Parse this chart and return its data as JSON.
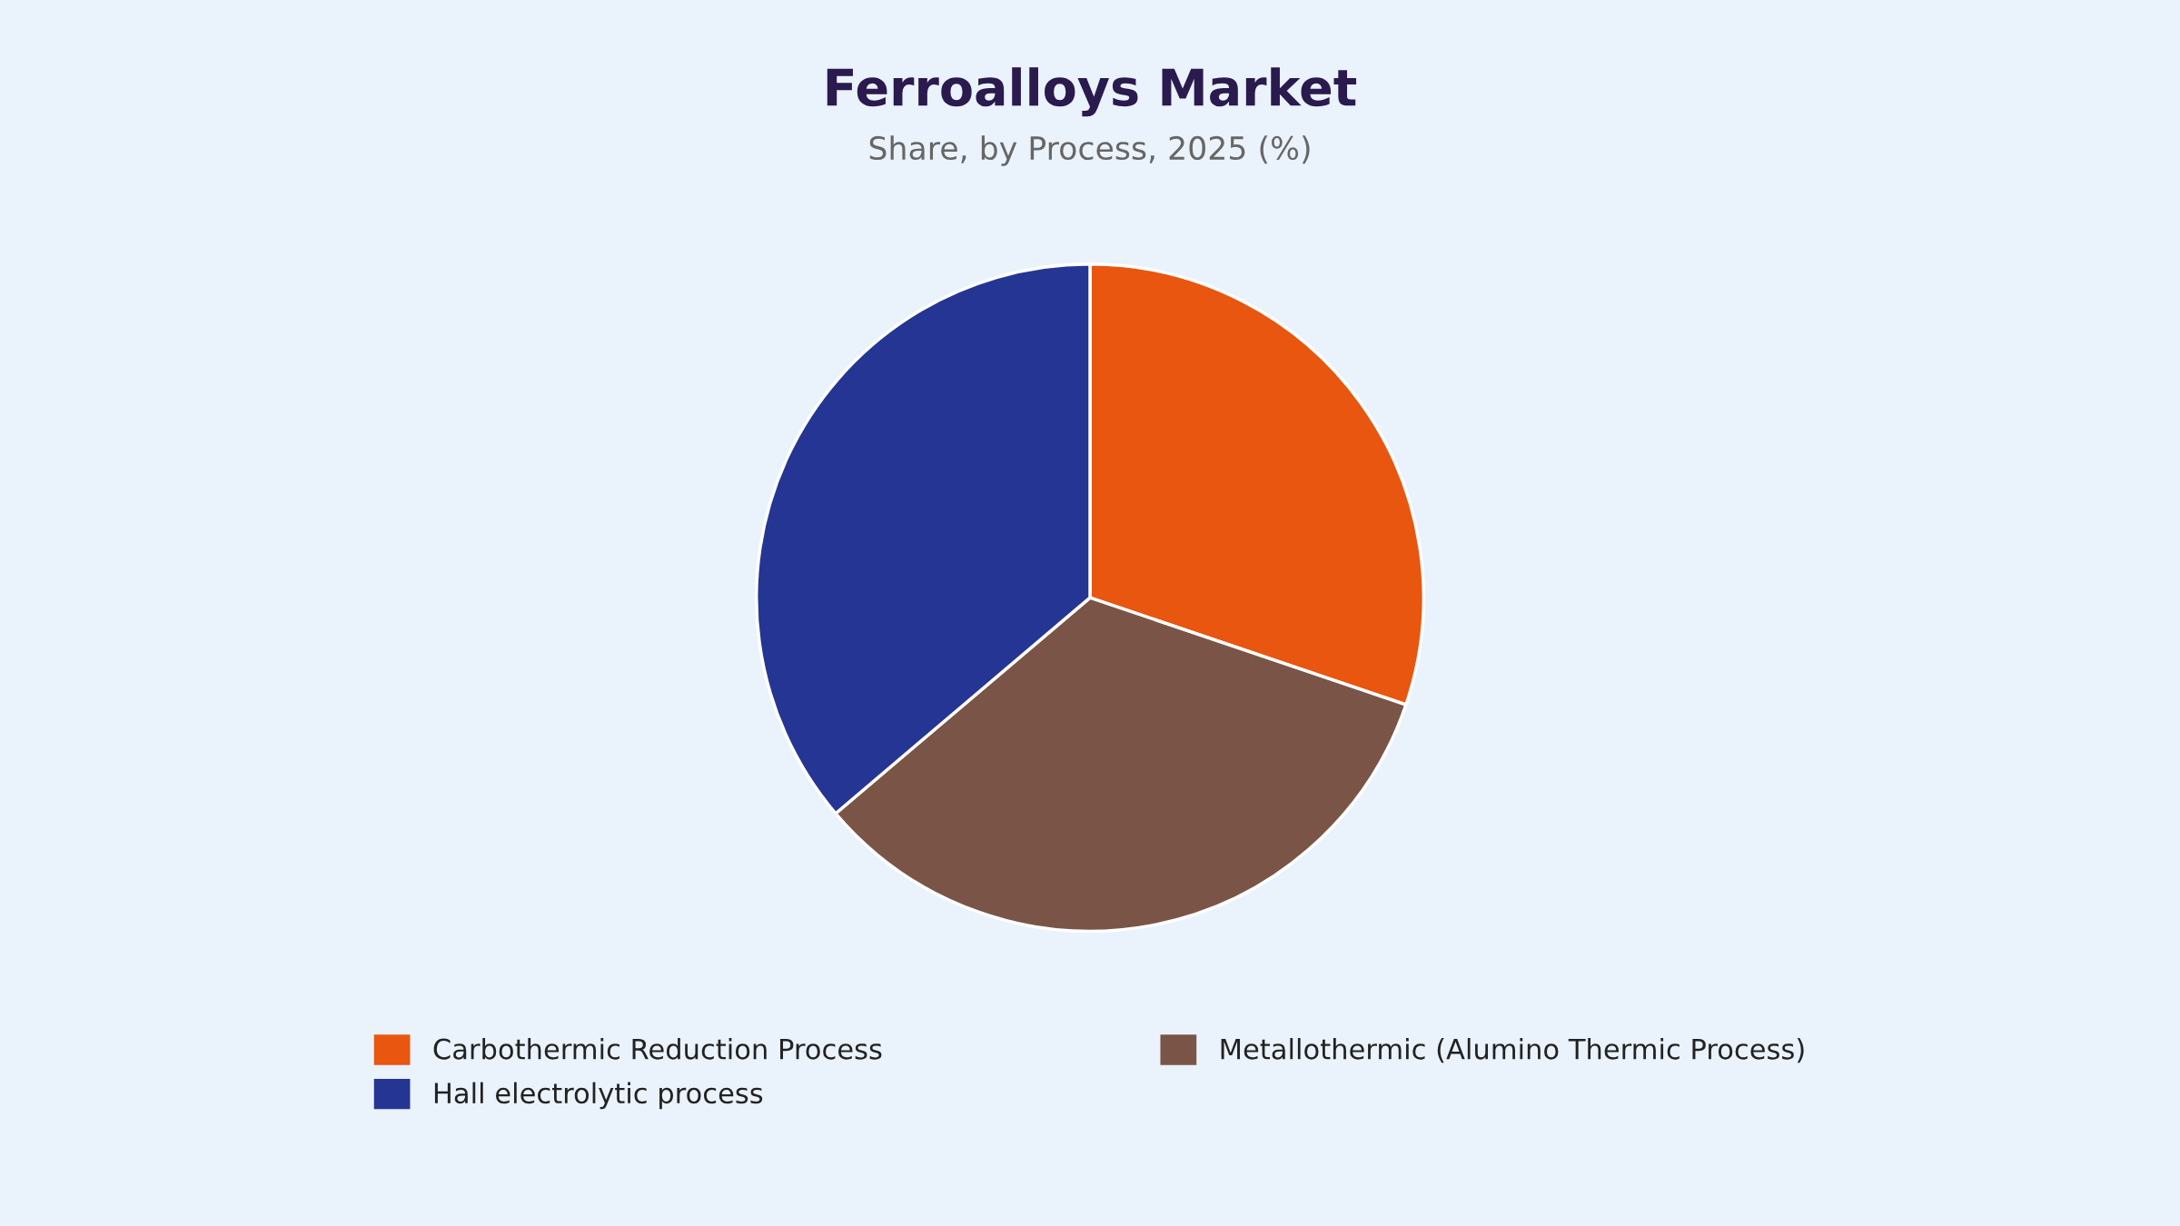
{
  "chart_data": {
    "type": "pie",
    "title": "Ferroalloys Market",
    "subtitle": "Share, by Process, 2025 (%)",
    "categories": [
      "Carbothermic Reduction Process",
      "Metallothermic (Alumino Thermic Process)",
      "Hall electrolytic process"
    ],
    "values": [
      30.2,
      33.6,
      36.2
    ],
    "colors": [
      "#e8560f",
      "#7a5547",
      "#253593"
    ],
    "legend": "bottom"
  }
}
